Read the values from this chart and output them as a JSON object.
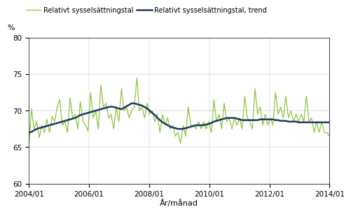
{
  "ylabel_unit": "%",
  "xlabel": "År/månad",
  "legend1": "Relativt sysselsättningstal",
  "legend2": "Relativt sysselsättningstal, trend",
  "line1_color": "#8dc63f",
  "line2_color": "#1f3864",
  "ylim": [
    60,
    80
  ],
  "yticks": [
    60,
    65,
    70,
    75,
    80
  ],
  "xtick_positions": [
    0,
    24,
    48,
    72,
    96,
    120
  ],
  "xtick_labels": [
    "2004/01",
    "2006/01",
    "2008/01",
    "2010/01",
    "2012/01",
    "2014/01"
  ],
  "raw": [
    65.5,
    70.2,
    67.5,
    68.5,
    66.3,
    68.0,
    67.0,
    68.8,
    67.0,
    69.2,
    68.5,
    70.5,
    71.5,
    68.0,
    68.5,
    67.0,
    71.8,
    69.0,
    69.5,
    67.5,
    71.2,
    68.5,
    68.0,
    67.2,
    72.5,
    69.0,
    70.0,
    67.5,
    73.5,
    70.5,
    71.0,
    69.0,
    69.5,
    67.5,
    70.5,
    68.5,
    73.0,
    70.0,
    70.5,
    69.0,
    70.0,
    70.5,
    74.5,
    70.0,
    70.5,
    69.0,
    71.0,
    69.5,
    70.0,
    68.5,
    69.5,
    67.0,
    69.5,
    68.0,
    69.0,
    67.5,
    68.0,
    66.5,
    67.0,
    65.5,
    68.0,
    66.5,
    70.5,
    68.0,
    68.0,
    67.5,
    68.5,
    67.5,
    68.5,
    67.5,
    68.5,
    67.0,
    71.5,
    68.5,
    69.5,
    67.5,
    71.0,
    68.5,
    69.0,
    67.5,
    69.0,
    68.0,
    69.0,
    67.5,
    72.0,
    69.0,
    68.5,
    67.5,
    73.0,
    69.5,
    70.5,
    68.0,
    69.5,
    68.0,
    69.0,
    68.0,
    72.5,
    69.5,
    70.5,
    69.0,
    72.0,
    69.0,
    70.0,
    68.5,
    69.5,
    68.5,
    69.5,
    68.5,
    72.0,
    68.5,
    69.0,
    67.0,
    68.5,
    67.0,
    68.5,
    67.0,
    67.0,
    66.5
  ],
  "trend": [
    67.0,
    67.1,
    67.3,
    67.5,
    67.6,
    67.7,
    67.8,
    67.9,
    68.0,
    68.1,
    68.2,
    68.3,
    68.4,
    68.5,
    68.6,
    68.7,
    68.8,
    68.9,
    69.0,
    69.2,
    69.4,
    69.5,
    69.6,
    69.7,
    69.8,
    69.9,
    70.0,
    70.1,
    70.2,
    70.3,
    70.4,
    70.5,
    70.55,
    70.5,
    70.4,
    70.3,
    70.2,
    70.4,
    70.6,
    70.8,
    71.0,
    71.0,
    70.9,
    70.8,
    70.7,
    70.5,
    70.3,
    70.0,
    69.7,
    69.4,
    69.0,
    68.7,
    68.4,
    68.2,
    68.0,
    67.8,
    67.7,
    67.6,
    67.5,
    67.5,
    67.5,
    67.6,
    67.7,
    67.8,
    67.9,
    68.0,
    68.0,
    68.0,
    68.0,
    68.1,
    68.2,
    68.3,
    68.5,
    68.6,
    68.7,
    68.8,
    68.9,
    69.0,
    69.0,
    69.0,
    69.0,
    68.9,
    68.8,
    68.7,
    68.7,
    68.7,
    68.7,
    68.7,
    68.7,
    68.7,
    68.8,
    68.8,
    68.8,
    68.8,
    68.8,
    68.8,
    68.7,
    68.7,
    68.6,
    68.6,
    68.6,
    68.5,
    68.5,
    68.5,
    68.5,
    68.4,
    68.4,
    68.4,
    68.4,
    68.4,
    68.4,
    68.4,
    68.4,
    68.4,
    68.4,
    68.4,
    68.4,
    68.4
  ]
}
